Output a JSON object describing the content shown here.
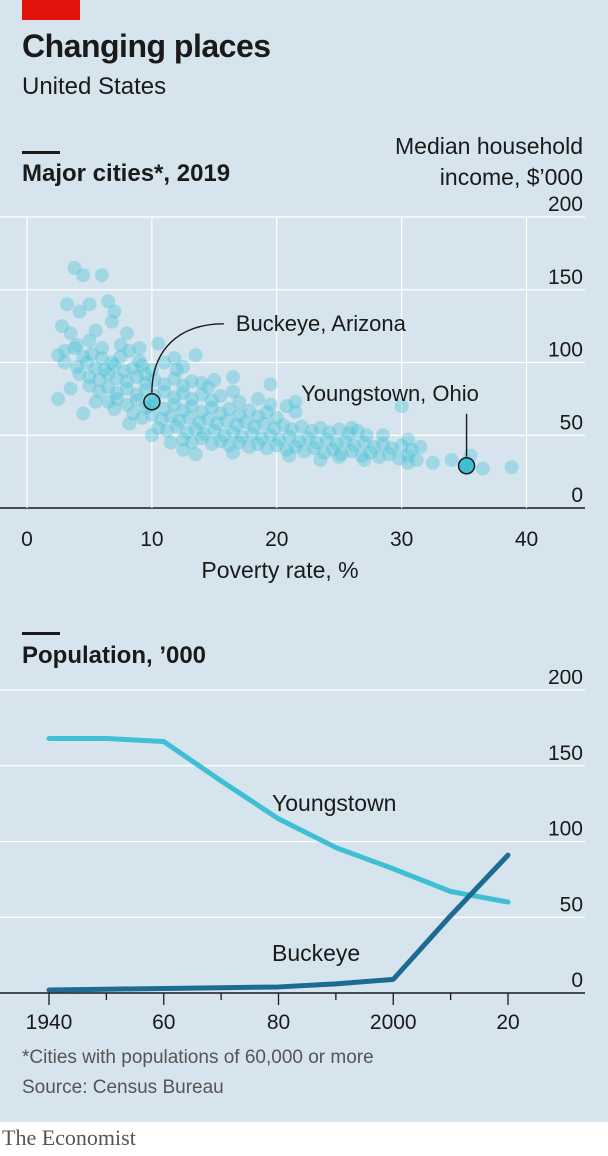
{
  "header": {
    "title": "Changing places",
    "subtitle": "United States"
  },
  "footer": {
    "footnote": "*Cities with populations of 60,000 or more",
    "source": "Source: Census Bureau",
    "brand": "The Economist"
  },
  "colors": {
    "background": "#d6e4ee",
    "accent_red": "#e3120b",
    "scatter_dot": "#3ebfd3",
    "youngstown_line": "#3ebfd3",
    "buckeye_line": "#1d6a93",
    "grid": "#ffffff",
    "axis": "#1a1a1a"
  },
  "chart_data": [
    {
      "type": "scatter",
      "title": "Major cities*, 2019",
      "xlabel": "Poverty rate, %",
      "ylabel": "Median household income, $’000",
      "xlim": [
        0,
        40
      ],
      "ylim": [
        0,
        200
      ],
      "x_ticks": [
        "0",
        "10",
        "20",
        "30",
        "40"
      ],
      "y_ticks": [
        "0",
        "50",
        "100",
        "150",
        "200"
      ],
      "grid": "both",
      "highlights": [
        {
          "label": "Buckeye, Arizona",
          "x": 10,
          "y": 73
        },
        {
          "label": "Youngstown, Ohio",
          "x": 35.2,
          "y": 29
        }
      ],
      "points": [
        [
          3.8,
          165
        ],
        [
          4.5,
          160
        ],
        [
          6,
          160
        ],
        [
          3.2,
          140
        ],
        [
          5,
          140
        ],
        [
          6.5,
          142
        ],
        [
          4.2,
          135
        ],
        [
          7,
          135
        ],
        [
          2.8,
          125
        ],
        [
          3.5,
          120
        ],
        [
          5.5,
          122
        ],
        [
          6.8,
          128
        ],
        [
          8,
          120
        ],
        [
          4,
          112
        ],
        [
          5,
          115
        ],
        [
          6,
          110
        ],
        [
          7.5,
          112
        ],
        [
          9,
          110
        ],
        [
          10.5,
          113
        ],
        [
          2.5,
          105
        ],
        [
          3,
          108
        ],
        [
          3.8,
          110
        ],
        [
          4.5,
          104
        ],
        [
          5.2,
          106
        ],
        [
          6,
          103
        ],
        [
          6.8,
          100
        ],
        [
          7.5,
          104
        ],
        [
          8.2,
          108
        ],
        [
          9,
          101
        ],
        [
          3,
          100
        ],
        [
          4,
          97
        ],
        [
          4.8,
          100
        ],
        [
          5.5,
          96
        ],
        [
          6.2,
          95
        ],
        [
          7,
          98
        ],
        [
          7.8,
          94
        ],
        [
          8.5,
          96
        ],
        [
          9.2,
          98
        ],
        [
          10,
          95
        ],
        [
          11,
          100
        ],
        [
          11.8,
          103
        ],
        [
          12.5,
          97
        ],
        [
          13.5,
          105
        ],
        [
          4.2,
          92
        ],
        [
          5,
          90
        ],
        [
          5.8,
          88
        ],
        [
          6.5,
          92
        ],
        [
          7.2,
          89
        ],
        [
          8,
          87
        ],
        [
          8.8,
          90
        ],
        [
          9.5,
          86
        ],
        [
          10.2,
          88
        ],
        [
          11,
          85
        ],
        [
          11.8,
          89
        ],
        [
          12.5,
          84
        ],
        [
          13.2,
          87
        ],
        [
          14,
          86
        ],
        [
          15,
          88
        ],
        [
          5,
          84
        ],
        [
          5.8,
          80
        ],
        [
          6.5,
          83
        ],
        [
          7.2,
          79
        ],
        [
          8,
          82
        ],
        [
          8.8,
          78
        ],
        [
          9.5,
          81
        ],
        [
          10.2,
          77
        ],
        [
          11,
          80
        ],
        [
          11.8,
          76
        ],
        [
          12.5,
          79
        ],
        [
          13.2,
          75
        ],
        [
          14,
          78
        ],
        [
          14.8,
          74
        ],
        [
          15.5,
          77
        ],
        [
          16.5,
          80
        ],
        [
          17,
          73
        ],
        [
          14.5,
          83
        ],
        [
          6.5,
          73
        ],
        [
          7.2,
          75
        ],
        [
          8,
          71
        ],
        [
          8.8,
          74
        ],
        [
          9.5,
          69
        ],
        [
          10.2,
          72
        ],
        [
          11,
          68
        ],
        [
          11.8,
          71
        ],
        [
          12.5,
          67
        ],
        [
          13.2,
          70
        ],
        [
          14,
          66
        ],
        [
          14.8,
          69
        ],
        [
          15.5,
          65
        ],
        [
          16.2,
          68
        ],
        [
          17,
          64
        ],
        [
          17.8,
          67
        ],
        [
          18.5,
          63
        ],
        [
          19.2,
          66
        ],
        [
          20,
          62
        ],
        [
          20.8,
          70
        ],
        [
          18.5,
          75
        ],
        [
          19.5,
          71
        ],
        [
          21.5,
          66
        ],
        [
          8.5,
          65
        ],
        [
          9.2,
          62
        ],
        [
          10,
          64
        ],
        [
          10.8,
          61
        ],
        [
          11.5,
          63
        ],
        [
          12.2,
          60
        ],
        [
          13,
          62
        ],
        [
          13.8,
          59
        ],
        [
          14.5,
          61
        ],
        [
          15.2,
          58
        ],
        [
          16,
          60
        ],
        [
          16.8,
          57
        ],
        [
          17.5,
          59
        ],
        [
          18.2,
          56
        ],
        [
          19,
          58
        ],
        [
          19.8,
          55
        ],
        [
          20.5,
          57
        ],
        [
          21.2,
          54
        ],
        [
          22,
          56
        ],
        [
          22.8,
          53
        ],
        [
          23.5,
          55
        ],
        [
          24.2,
          52
        ],
        [
          25,
          54
        ],
        [
          25.8,
          51
        ],
        [
          26.5,
          53
        ],
        [
          27.2,
          50
        ],
        [
          10.5,
          55
        ],
        [
          11.2,
          53
        ],
        [
          12,
          56
        ],
        [
          12.8,
          52
        ],
        [
          13.5,
          54
        ],
        [
          14.2,
          51
        ],
        [
          15,
          53
        ],
        [
          15.8,
          50
        ],
        [
          16.5,
          52
        ],
        [
          17.2,
          49
        ],
        [
          18,
          51
        ],
        [
          18.8,
          48
        ],
        [
          19.5,
          50
        ],
        [
          20.2,
          47
        ],
        [
          21,
          49
        ],
        [
          21.8,
          46
        ],
        [
          22.5,
          48
        ],
        [
          23.2,
          45
        ],
        [
          24,
          47
        ],
        [
          24.8,
          44
        ],
        [
          25.5,
          46
        ],
        [
          26.2,
          43
        ],
        [
          27,
          45
        ],
        [
          27.8,
          42
        ],
        [
          28.5,
          44
        ],
        [
          29.2,
          41
        ],
        [
          30,
          43
        ],
        [
          30.8,
          40
        ],
        [
          31.5,
          42
        ],
        [
          12.5,
          47
        ],
        [
          13.2,
          45
        ],
        [
          14,
          48
        ],
        [
          14.8,
          44
        ],
        [
          15.5,
          46
        ],
        [
          16.2,
          43
        ],
        [
          17,
          45
        ],
        [
          17.8,
          42
        ],
        [
          18.5,
          44
        ],
        [
          19.2,
          41
        ],
        [
          20,
          43
        ],
        [
          20.8,
          40
        ],
        [
          21.5,
          42
        ],
        [
          22.2,
          39
        ],
        [
          23,
          41
        ],
        [
          23.8,
          38
        ],
        [
          24.5,
          40
        ],
        [
          25.2,
          37
        ],
        [
          26,
          39
        ],
        [
          26.8,
          36
        ],
        [
          27.5,
          38
        ],
        [
          28.2,
          35
        ],
        [
          29,
          37
        ],
        [
          29.8,
          34
        ],
        [
          30.5,
          36
        ],
        [
          31.2,
          33
        ],
        [
          12.5,
          40
        ],
        [
          13.5,
          37
        ],
        [
          16.5,
          38
        ],
        [
          21,
          36
        ],
        [
          23.5,
          33
        ],
        [
          25,
          35
        ],
        [
          27,
          33
        ],
        [
          30.5,
          31
        ],
        [
          32.5,
          31
        ],
        [
          34,
          33
        ],
        [
          35.5,
          36
        ],
        [
          36.5,
          27
        ],
        [
          38.8,
          28
        ],
        [
          4.5,
          65
        ],
        [
          2.5,
          75
        ],
        [
          3.5,
          82
        ],
        [
          9.5,
          92
        ],
        [
          12,
          95
        ],
        [
          30,
          70
        ],
        [
          19.5,
          85
        ],
        [
          16.5,
          90
        ],
        [
          21.5,
          73
        ],
        [
          26,
          55
        ],
        [
          28.5,
          50
        ],
        [
          30.5,
          47
        ],
        [
          5.5,
          73
        ],
        [
          7,
          68
        ],
        [
          8.2,
          58
        ],
        [
          10,
          50
        ],
        [
          11.5,
          45
        ],
        [
          9.8,
          70
        ]
      ]
    },
    {
      "type": "line",
      "title": "Population, ’000",
      "xlim": [
        1940,
        2020
      ],
      "ylim": [
        0,
        200
      ],
      "x_ticks": [
        "1940",
        "60",
        "80",
        "2000",
        "20"
      ],
      "y_ticks": [
        "0",
        "50",
        "100",
        "150",
        "200"
      ],
      "grid": "horizontal",
      "series": [
        {
          "name": "Youngstown",
          "x": [
            1940,
            1950,
            1960,
            1970,
            1980,
            1990,
            2000,
            2010,
            2020
          ],
          "values": [
            168,
            168,
            166,
            140,
            115,
            96,
            82,
            67,
            60
          ]
        },
        {
          "name": "Buckeye",
          "x": [
            1940,
            1950,
            1960,
            1970,
            1980,
            1990,
            2000,
            2010,
            2020
          ],
          "values": [
            2,
            2.5,
            3,
            3.5,
            4,
            6,
            9,
            51,
            91
          ]
        }
      ]
    }
  ]
}
